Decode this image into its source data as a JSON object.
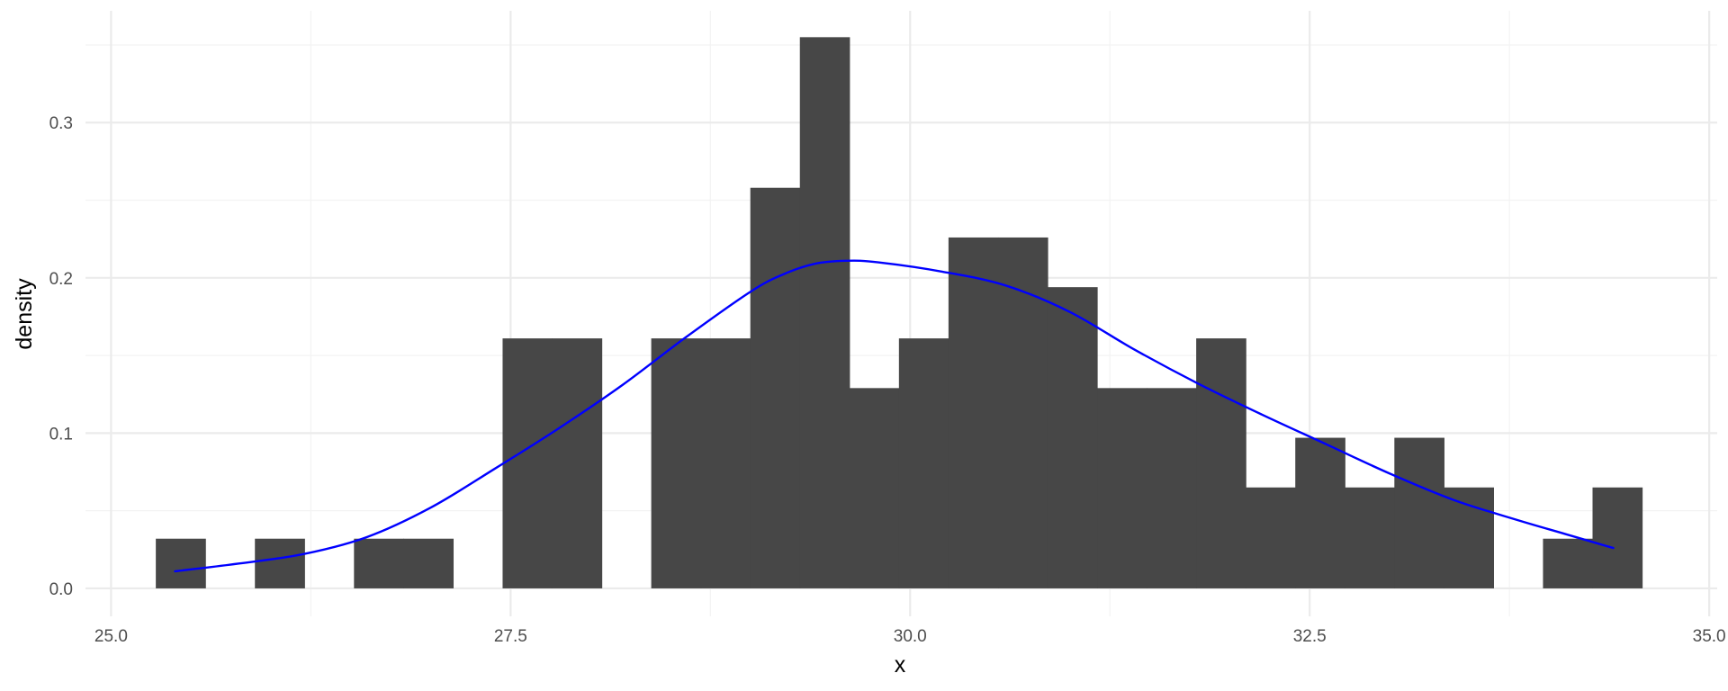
{
  "colors": {
    "background": "#ffffff",
    "grid_major": "#ebebeb",
    "grid_minor": "#f3f3f3",
    "bar_fill": "#474747",
    "density_line": "#0000ff",
    "tick_text": "#4d4d4d",
    "axis_title_text": "#000000"
  },
  "chart_data": {
    "type": "bar",
    "subtype": "histogram",
    "title": "",
    "xlabel": "x",
    "ylabel": "density",
    "xlim": [
      24.84,
      35.05
    ],
    "ylim": [
      -0.018,
      0.372
    ],
    "x_ticks": [
      25.0,
      27.5,
      30.0,
      32.5,
      35.0
    ],
    "x_tick_labels": [
      "25.0",
      "27.5",
      "30.0",
      "32.5",
      "35.0"
    ],
    "x_minor_ticks": [
      26.25,
      28.75,
      31.25,
      33.75
    ],
    "y_ticks": [
      0.0,
      0.1,
      0.2,
      0.3
    ],
    "y_tick_labels": [
      "0.0",
      "0.1",
      "0.2",
      "0.3"
    ],
    "y_minor_ticks": [
      0.05,
      0.15,
      0.25,
      0.35
    ],
    "grid": true,
    "legend": "none",
    "bins": [
      {
        "x0": 25.28,
        "x1": 25.59,
        "density": 0.032
      },
      {
        "x0": 25.59,
        "x1": 25.9,
        "density": 0.0
      },
      {
        "x0": 25.9,
        "x1": 26.21,
        "density": 0.032
      },
      {
        "x0": 26.21,
        "x1": 26.52,
        "density": 0.0
      },
      {
        "x0": 26.52,
        "x1": 26.83,
        "density": 0.032
      },
      {
        "x0": 26.83,
        "x1": 27.14,
        "density": 0.032
      },
      {
        "x0": 27.14,
        "x1": 27.45,
        "density": 0.0
      },
      {
        "x0": 27.45,
        "x1": 27.76,
        "density": 0.161
      },
      {
        "x0": 27.76,
        "x1": 28.07,
        "density": 0.161
      },
      {
        "x0": 28.07,
        "x1": 28.38,
        "density": 0.0
      },
      {
        "x0": 28.38,
        "x1": 28.69,
        "density": 0.161
      },
      {
        "x0": 28.69,
        "x1": 29.0,
        "density": 0.161
      },
      {
        "x0": 29.0,
        "x1": 29.31,
        "density": 0.258
      },
      {
        "x0": 29.31,
        "x1": 29.62,
        "density": 0.355
      },
      {
        "x0": 29.62,
        "x1": 29.93,
        "density": 0.129
      },
      {
        "x0": 29.93,
        "x1": 30.24,
        "density": 0.161
      },
      {
        "x0": 30.24,
        "x1": 30.55,
        "density": 0.226
      },
      {
        "x0": 30.55,
        "x1": 30.86,
        "density": 0.226
      },
      {
        "x0": 30.86,
        "x1": 31.17,
        "density": 0.194
      },
      {
        "x0": 31.17,
        "x1": 31.48,
        "density": 0.129
      },
      {
        "x0": 31.48,
        "x1": 31.79,
        "density": 0.129
      },
      {
        "x0": 31.79,
        "x1": 32.1,
        "density": 0.161
      },
      {
        "x0": 32.1,
        "x1": 32.41,
        "density": 0.065
      },
      {
        "x0": 32.41,
        "x1": 32.72,
        "density": 0.097
      },
      {
        "x0": 32.72,
        "x1": 33.03,
        "density": 0.065
      },
      {
        "x0": 33.03,
        "x1": 33.34,
        "density": 0.097
      },
      {
        "x0": 33.34,
        "x1": 33.65,
        "density": 0.065
      },
      {
        "x0": 33.65,
        "x1": 33.96,
        "density": 0.0
      },
      {
        "x0": 33.96,
        "x1": 34.27,
        "density": 0.032
      },
      {
        "x0": 34.27,
        "x1": 34.58,
        "density": 0.065
      }
    ],
    "series": [
      {
        "type": "line",
        "x": [
          25.4,
          25.8,
          26.2,
          26.6,
          27.0,
          27.4,
          27.8,
          28.2,
          28.6,
          29.0,
          29.2,
          29.4,
          29.6,
          29.8,
          30.2,
          30.6,
          31.0,
          31.4,
          31.8,
          32.2,
          32.6,
          33.0,
          33.4,
          33.8,
          34.1,
          34.4
        ],
        "y": [
          0.011,
          0.016,
          0.022,
          0.033,
          0.052,
          0.077,
          0.103,
          0.131,
          0.162,
          0.191,
          0.202,
          0.209,
          0.211,
          0.21,
          0.204,
          0.195,
          0.178,
          0.154,
          0.132,
          0.112,
          0.093,
          0.074,
          0.057,
          0.044,
          0.035,
          0.026
        ]
      }
    ]
  }
}
